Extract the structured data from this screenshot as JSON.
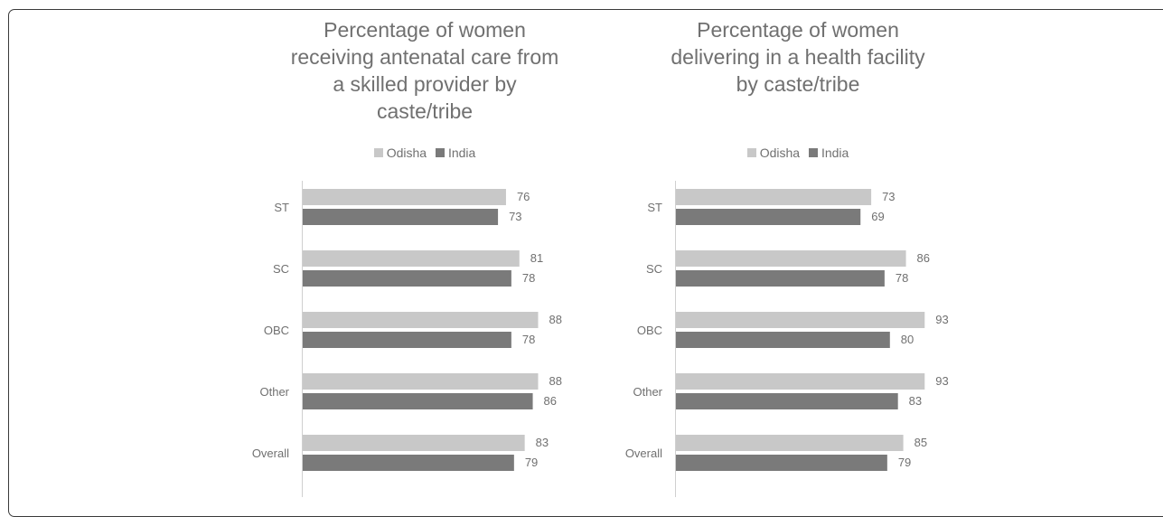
{
  "colors": {
    "odisha": "#c8c8c8",
    "india": "#7a7a7a",
    "text": "#707070",
    "axis": "#d0d0d0"
  },
  "chart_data": [
    {
      "type": "bar",
      "orientation": "horizontal",
      "title_lines": [
        "Percentage of women",
        "receiving antenatal care from",
        "a skilled provider by",
        "caste/tribe"
      ],
      "categories": [
        "ST",
        "SC",
        "OBC",
        "Other",
        "Overall"
      ],
      "series": [
        {
          "name": "Odisha",
          "values": [
            76,
            81,
            88,
            88,
            83
          ]
        },
        {
          "name": "India",
          "values": [
            73,
            78,
            78,
            86,
            79
          ]
        }
      ],
      "xlim": [
        0,
        100
      ],
      "legend_position": "top",
      "grid": false
    },
    {
      "type": "bar",
      "orientation": "horizontal",
      "title_lines": [
        "Percentage of women",
        "delivering in a health facility",
        "by caste/tribe"
      ],
      "categories": [
        "ST",
        "SC",
        "OBC",
        "Other",
        "Overall"
      ],
      "series": [
        {
          "name": "Odisha",
          "values": [
            73,
            86,
            93,
            93,
            85
          ]
        },
        {
          "name": "India",
          "values": [
            69,
            78,
            80,
            83,
            79
          ]
        }
      ],
      "xlim": [
        0,
        100
      ],
      "legend_position": "top",
      "grid": false
    }
  ]
}
